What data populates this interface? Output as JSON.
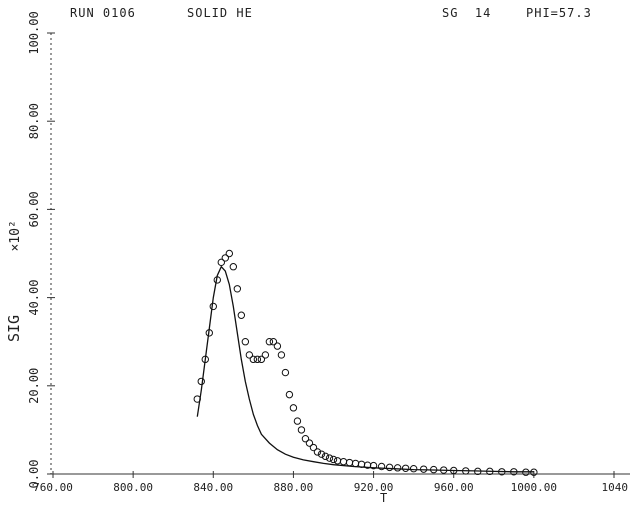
{
  "header": {
    "run": "RUN 0106",
    "sample": "SOLID HE",
    "sg": "SG  14",
    "phi": "PHI=57.3"
  },
  "chart_data": {
    "type": "scatter",
    "title": "",
    "xlabel": "T",
    "ylabel": "SIG",
    "ylabel_suffix": "×10²",
    "xlim": [
      760,
      1000
    ],
    "ylim": [
      0,
      100
    ],
    "x_ticks": [
      "760.00",
      "800.00",
      "840.00",
      "880.00",
      "920.00",
      "960.00",
      "1000.00",
      "1040"
    ],
    "x_tick_values": [
      760,
      800,
      840,
      880,
      920,
      960,
      1000,
      1040
    ],
    "y_ticks": [
      "0.00",
      "20.00",
      "40.00",
      "60.00",
      "80.00",
      "100.00"
    ],
    "y_tick_values": [
      0,
      20,
      40,
      60,
      80,
      100
    ],
    "series": [
      {
        "kind": "points",
        "marker": "circle",
        "x": [
          832,
          834,
          836,
          838,
          840,
          842,
          844,
          846,
          848,
          850,
          852,
          854,
          856,
          858,
          860,
          862,
          864,
          866,
          868,
          870,
          872,
          874,
          876,
          878,
          880,
          882,
          884,
          886,
          888,
          890,
          892,
          894,
          896,
          898,
          900,
          902,
          905,
          908,
          911,
          914,
          917,
          920,
          924,
          928,
          932,
          936,
          940,
          945,
          950,
          955,
          960,
          966,
          972,
          978,
          984,
          990,
          996,
          1000
        ],
        "y": [
          17,
          21,
          26,
          32,
          38,
          44,
          48,
          49,
          50,
          47,
          42,
          36,
          30,
          27,
          26,
          26,
          26,
          27,
          30,
          30,
          29,
          27,
          23,
          18,
          15,
          12,
          10,
          8,
          7,
          6,
          5,
          4.5,
          4,
          3.6,
          3.3,
          3,
          2.8,
          2.6,
          2.4,
          2.2,
          2,
          1.9,
          1.7,
          1.5,
          1.4,
          1.3,
          1.2,
          1.1,
          1,
          0.9,
          0.8,
          0.7,
          0.6,
          0.6,
          0.5,
          0.5,
          0.4,
          0.4
        ]
      },
      {
        "kind": "line",
        "x": [
          832,
          834,
          836,
          838,
          840,
          842,
          844,
          846,
          848,
          850,
          852,
          854,
          856,
          858,
          860,
          862,
          864,
          868,
          872,
          876,
          880,
          885,
          890,
          895,
          900,
          910,
          920,
          930,
          940,
          950,
          960,
          970,
          980,
          990,
          1000
        ],
        "y": [
          13,
          19,
          26,
          33,
          40,
          45,
          47,
          46,
          43,
          38,
          32,
          26,
          21,
          17,
          13.5,
          11,
          9,
          7,
          5.5,
          4.5,
          3.8,
          3.2,
          2.8,
          2.4,
          2.1,
          1.7,
          1.4,
          1.2,
          1,
          0.9,
          0.8,
          0.7,
          0.6,
          0.5,
          0.5
        ]
      }
    ]
  }
}
